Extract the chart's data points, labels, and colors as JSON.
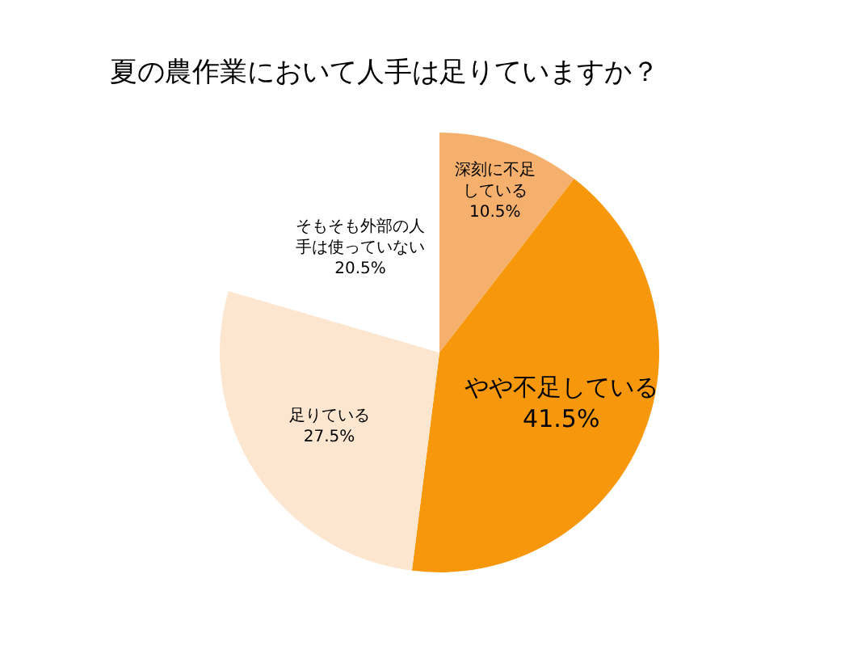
{
  "chart_data": {
    "type": "pie",
    "title": "夏の農作業において人手は足りていますか？",
    "categories": [
      "深刻に不足している",
      "やや不足している",
      "足りている",
      "そもそも外部の人手は使っていない"
    ],
    "values": [
      10.5,
      41.5,
      27.5,
      20.5
    ],
    "value_labels": [
      "10.5%",
      "41.5%",
      "27.5%",
      "20.5%"
    ],
    "colors": [
      "#f5b06e",
      "#f7980c",
      "#fde6cf",
      "#ffffff"
    ]
  }
}
